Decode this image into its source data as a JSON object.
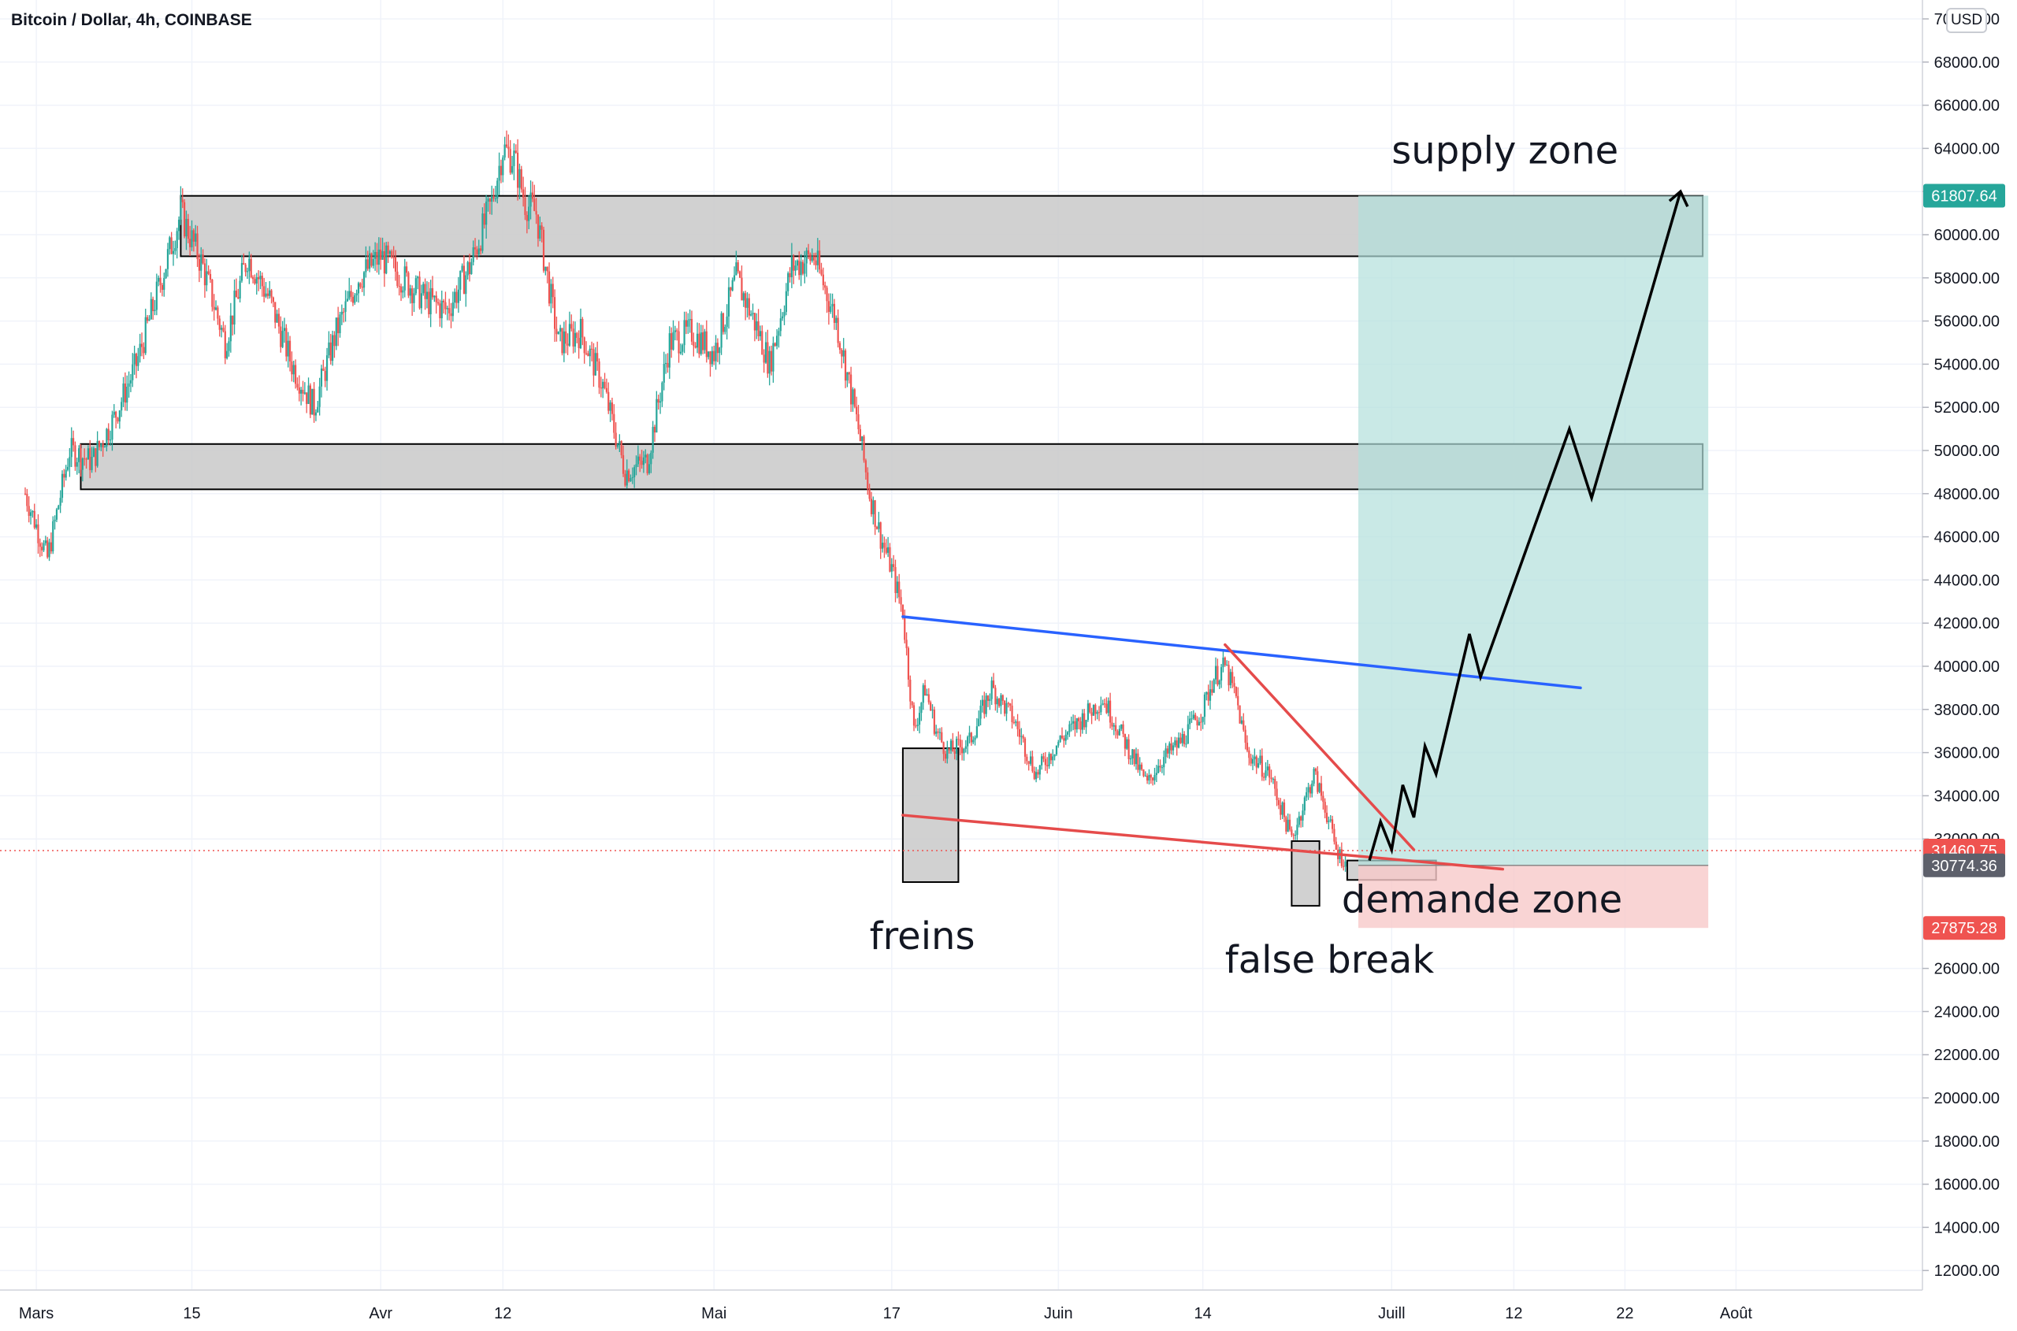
{
  "header": {
    "symbol": "Bitcoin / Dollar, 4h, COINBASE",
    "currency_button": "USD"
  },
  "colors": {
    "candle_up": "#26a69a",
    "candle_down": "#ef5350",
    "zone_fill": "#c9c9c9",
    "target_fill": "#b2dfdb",
    "stop_fill": "#f8c9c9",
    "blue_trendline": "#2962ff",
    "red_trendline": "#e54b4b",
    "path": "#000000",
    "label_green": "#26a69a",
    "label_red": "#ef5350",
    "label_gray": "#5d606b"
  },
  "chart_data": {
    "type": "candlestick",
    "title": "Bitcoin / Dollar, 4h, COINBASE",
    "y_axis": {
      "ticks": [
        "70000.00",
        "68000.00",
        "66000.00",
        "64000.00",
        "62000.00",
        "60000.00",
        "58000.00",
        "56000.00",
        "54000.00",
        "52000.00",
        "50000.00",
        "48000.00",
        "46000.00",
        "44000.00",
        "42000.00",
        "40000.00",
        "38000.00",
        "36000.00",
        "34000.00",
        "32000.00",
        "26000.00",
        "24000.00",
        "22000.00",
        "20000.00",
        "18000.00",
        "16000.00",
        "14000.00",
        "12000.00"
      ],
      "range": [
        11000,
        70500
      ]
    },
    "x_axis": {
      "labels": [
        {
          "text": "Mars",
          "day": 1
        },
        {
          "text": "15",
          "day": 15
        },
        {
          "text": "Avr",
          "day": 32
        },
        {
          "text": "12",
          "day": 43
        },
        {
          "text": "Mai",
          "day": 62
        },
        {
          "text": "17",
          "day": 78
        },
        {
          "text": "Juin",
          "day": 93
        },
        {
          "text": "14",
          "day": 106
        },
        {
          "text": "Juill",
          "day": 123
        },
        {
          "text": "12",
          "day": 134
        },
        {
          "text": "22",
          "day": 144
        },
        {
          "text": "Août",
          "day": 154
        }
      ],
      "range": [
        -1,
        175
      ]
    },
    "price_path": [
      [
        0,
        48000
      ],
      [
        2,
        45000
      ],
      [
        4,
        50000
      ],
      [
        6,
        49500
      ],
      [
        8,
        51500
      ],
      [
        10,
        54000
      ],
      [
        12,
        57500
      ],
      [
        14,
        61000
      ],
      [
        16,
        58500
      ],
      [
        18,
        55000
      ],
      [
        20,
        59000
      ],
      [
        22,
        57000
      ],
      [
        24,
        54000
      ],
      [
        26,
        52000
      ],
      [
        28,
        55500
      ],
      [
        30,
        58000
      ],
      [
        32,
        59000
      ],
      [
        34,
        58000
      ],
      [
        36,
        57000
      ],
      [
        38,
        56500
      ],
      [
        40,
        58500
      ],
      [
        42,
        61500
      ],
      [
        43,
        64000
      ],
      [
        44,
        63500
      ],
      [
        45,
        61500
      ],
      [
        46,
        61000
      ],
      [
        48,
        55000
      ],
      [
        50,
        55500
      ],
      [
        52,
        53000
      ],
      [
        54,
        49000
      ],
      [
        56,
        49500
      ],
      [
        58,
        55000
      ],
      [
        60,
        55500
      ],
      [
        62,
        54500
      ],
      [
        64,
        58000
      ],
      [
        66,
        55500
      ],
      [
        67,
        54000
      ],
      [
        69,
        58500
      ],
      [
        71,
        59000
      ],
      [
        73,
        56000
      ],
      [
        74,
        53500
      ],
      [
        75,
        51000
      ],
      [
        76,
        48000
      ],
      [
        77,
        46000
      ],
      [
        78,
        44500
      ],
      [
        79,
        42500
      ],
      [
        80,
        37000
      ],
      [
        81,
        39000
      ],
      [
        82,
        37000
      ],
      [
        83,
        36000
      ],
      [
        85,
        36500
      ],
      [
        87,
        39000
      ],
      [
        89,
        37500
      ],
      [
        91,
        35000
      ],
      [
        93,
        36500
      ],
      [
        95,
        37500
      ],
      [
        97,
        38500
      ],
      [
        99,
        36500
      ],
      [
        101,
        34500
      ],
      [
        102,
        35500
      ],
      [
        104,
        36500
      ],
      [
        106,
        38000
      ],
      [
        107,
        39500
      ],
      [
        108,
        40000
      ],
      [
        109,
        38500
      ],
      [
        110,
        36000
      ],
      [
        112,
        35000
      ],
      [
        114,
        32000
      ],
      [
        116,
        35000
      ],
      [
        117,
        33500
      ],
      [
        118,
        31500
      ],
      [
        119,
        30800
      ]
    ],
    "zones": [
      {
        "name": "upper-supply-box",
        "from_day": 14,
        "to_day": 151,
        "low": 59000,
        "high": 61800
      },
      {
        "name": "mid-resistance-box",
        "from_day": 5,
        "to_day": 151,
        "low": 48200,
        "high": 50300
      },
      {
        "name": "freins-box",
        "from_day": 79,
        "to_day": 84,
        "low": 30000,
        "high": 36200
      },
      {
        "name": "false-break-box",
        "from_day": 114,
        "to_day": 116.5,
        "low": 28900,
        "high": 31900
      },
      {
        "name": "demande-box",
        "from_day": 119,
        "to_day": 127,
        "low": 30100,
        "high": 31000
      }
    ],
    "position": {
      "from_day": 120,
      "to_day": 151.5,
      "entry": 30774.36,
      "target": 61807.64,
      "stop": 27875.28
    },
    "trendlines": [
      {
        "name": "blue-resistance-line",
        "color": "blue",
        "points": [
          [
            79,
            42300
          ],
          [
            140,
            39000
          ]
        ]
      },
      {
        "name": "red-upper-falling-line",
        "color": "red",
        "points": [
          [
            108,
            41000
          ],
          [
            125,
            31500
          ]
        ]
      },
      {
        "name": "red-lower-support-line",
        "color": "red",
        "points": [
          [
            79,
            33100
          ],
          [
            133,
            30600
          ]
        ]
      }
    ],
    "projection": [
      [
        121,
        31000
      ],
      [
        122,
        32800
      ],
      [
        123,
        31500
      ],
      [
        124,
        34500
      ],
      [
        125,
        33000
      ],
      [
        126,
        36300
      ],
      [
        127,
        35000
      ],
      [
        130,
        41500
      ],
      [
        131,
        39500
      ],
      [
        139,
        51000
      ],
      [
        141,
        47800
      ],
      [
        149,
        62000
      ]
    ],
    "annotations": [
      {
        "text": "supply zone",
        "day": 123,
        "price": 63300
      },
      {
        "text": "freins",
        "day": 76,
        "price": 26900
      },
      {
        "text": "demande zone",
        "day": 118.5,
        "price": 28600
      },
      {
        "text": "false break",
        "day": 108,
        "price": 25800
      }
    ],
    "price_labels": [
      {
        "value": "61807.64",
        "kind": "target"
      },
      {
        "value": "31460.75",
        "kind": "current"
      },
      {
        "value": "30774.36",
        "kind": "entry"
      },
      {
        "value": "27875.28",
        "kind": "stop"
      }
    ],
    "current_price": 31460.75
  }
}
